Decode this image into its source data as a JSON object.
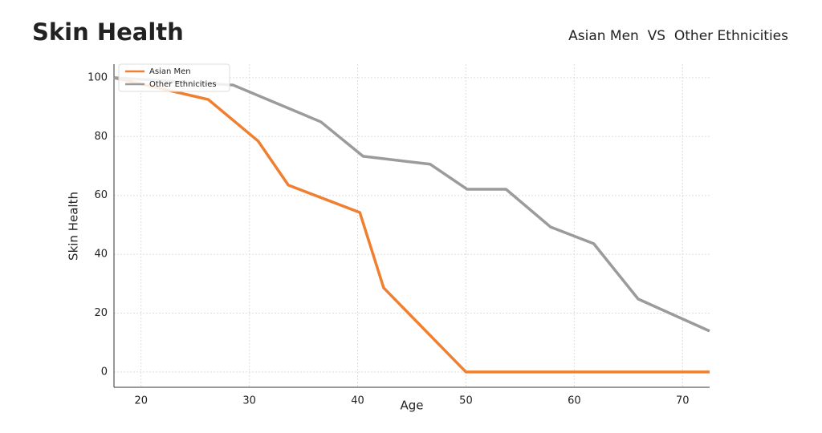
{
  "chart_data": {
    "type": "line",
    "title": "Skin Health",
    "subtitle": "Asian Men  VS  Other Ethnicities",
    "x_label": "Age",
    "y_label": "Skin Health",
    "xlim": [
      17.5,
      72.5
    ],
    "ylim": [
      -5.2,
      104.6
    ],
    "xticks": [
      20,
      30,
      40,
      50,
      60,
      70
    ],
    "yticks": [
      0,
      20,
      40,
      60,
      80,
      100
    ],
    "grid": true,
    "legend": "upper left",
    "series": [
      {
        "name": "Asian Men",
        "color": "#f07f2f",
        "x": [
          17.5,
          26.2,
          30.8,
          33.6,
          40.2,
          42.4,
          50,
          72.5
        ],
        "values": [
          100,
          92.6,
          78.5,
          63.5,
          54.2,
          28.6,
          0,
          0
        ]
      },
      {
        "name": "Other Ethnicities",
        "color": "#9b9b9b",
        "x": [
          17.5,
          28.5,
          36.6,
          40.5,
          46.7,
          50.1,
          53.7,
          57.8,
          61.8,
          65.9,
          72.5
        ],
        "values": [
          100,
          97.5,
          85,
          73.3,
          70.6,
          62.1,
          62.1,
          49.3,
          43.6,
          24.8,
          13.9
        ]
      }
    ]
  }
}
